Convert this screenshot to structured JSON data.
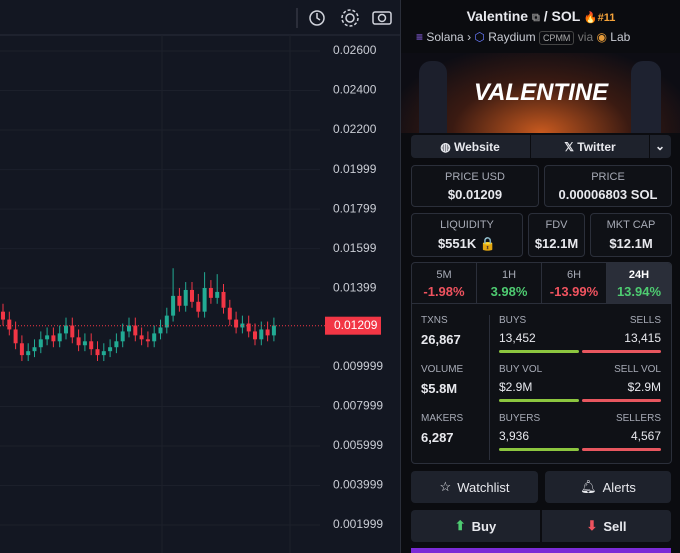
{
  "chart_data": {
    "type": "candlestick",
    "ylim": [
      0.00058,
      0.02681
    ],
    "yticks": [
      {
        "value": 0.026,
        "label": "0.02600"
      },
      {
        "value": 0.024,
        "label": "0.02400"
      },
      {
        "value": 0.022,
        "label": "0.02200"
      },
      0.01999,
      0.01799,
      0.01599,
      0.01399,
      0.009999,
      0.007999,
      0.005999,
      0.003999,
      0.001999
    ],
    "last_price": 0.01209,
    "up_color": "#22ab94",
    "down_color": "#f23645",
    "open": [
      0.0128,
      0.0124,
      0.0119,
      0.0112,
      0.0106,
      0.0108,
      0.011,
      0.0114,
      0.0116,
      0.0113,
      0.0117,
      0.0121,
      0.0115,
      0.0111,
      0.0113,
      0.0109,
      0.0106,
      0.0108,
      0.011,
      0.0113,
      0.0118,
      0.0121,
      0.0116,
      0.0114,
      0.0113,
      0.0117,
      0.012,
      0.0126,
      0.0136,
      0.0131,
      0.0139,
      0.0133,
      0.0128,
      0.014,
      0.0135,
      0.0138,
      0.013,
      0.0124,
      0.012,
      0.0122,
      0.0118,
      0.0114,
      0.0119,
      0.0116
    ],
    "high": [
      0.0132,
      0.0128,
      0.0123,
      0.0116,
      0.0112,
      0.0114,
      0.0118,
      0.012,
      0.012,
      0.0121,
      0.0125,
      0.0125,
      0.0119,
      0.0117,
      0.0117,
      0.0113,
      0.0112,
      0.0114,
      0.0117,
      0.0122,
      0.0125,
      0.0125,
      0.012,
      0.0118,
      0.0121,
      0.0124,
      0.013,
      0.015,
      0.014,
      0.0143,
      0.0143,
      0.0137,
      0.0148,
      0.0144,
      0.0147,
      0.0142,
      0.0134,
      0.0128,
      0.0126,
      0.0126,
      0.0122,
      0.0123,
      0.0123,
      0.0125
    ],
    "low": [
      0.0121,
      0.0116,
      0.0109,
      0.0103,
      0.0103,
      0.0105,
      0.0107,
      0.0111,
      0.011,
      0.011,
      0.0114,
      0.0112,
      0.0108,
      0.0108,
      0.0106,
      0.0103,
      0.0103,
      0.0105,
      0.0107,
      0.011,
      0.0115,
      0.0113,
      0.0111,
      0.011,
      0.011,
      0.0114,
      0.0117,
      0.0123,
      0.0128,
      0.0128,
      0.013,
      0.0125,
      0.0125,
      0.0132,
      0.0132,
      0.0127,
      0.0121,
      0.0117,
      0.0117,
      0.0115,
      0.0111,
      0.0111,
      0.0113,
      0.0113
    ],
    "close": [
      0.0124,
      0.0119,
      0.0112,
      0.0106,
      0.0108,
      0.011,
      0.0114,
      0.0116,
      0.0113,
      0.0117,
      0.0121,
      0.0115,
      0.0111,
      0.0113,
      0.0109,
      0.0106,
      0.0108,
      0.011,
      0.0113,
      0.0118,
      0.0121,
      0.0116,
      0.0114,
      0.0113,
      0.0117,
      0.012,
      0.0126,
      0.0136,
      0.0131,
      0.0139,
      0.0133,
      0.0128,
      0.014,
      0.0135,
      0.0138,
      0.013,
      0.0124,
      0.012,
      0.0122,
      0.0118,
      0.0114,
      0.0119,
      0.0116,
      0.0121
    ]
  },
  "panel": {
    "name": "Valentine",
    "quote": "SOL",
    "rank": "#11",
    "chain": "Solana",
    "dex": "Raydium",
    "badge": "CPMM",
    "via": "via",
    "lab": "Lab",
    "banner": "VALENTINE",
    "links": [
      "Website",
      "Twitter"
    ],
    "price_usd": {
      "label": "PRICE USD",
      "value": "$0.01209"
    },
    "price": {
      "label": "PRICE",
      "value": "0.00006803 SOL"
    },
    "liquidity": {
      "label": "LIQUIDITY",
      "value": "$551K"
    },
    "fdv": {
      "label": "FDV",
      "value": "$12.1M"
    },
    "mktcap": {
      "label": "MKT CAP",
      "value": "$12.1M"
    },
    "periods": [
      {
        "label": "5M",
        "change": "-1.98%"
      },
      {
        "label": "1H",
        "change": "3.98%"
      },
      {
        "label": "6H",
        "change": "-13.99%"
      },
      {
        "label": "24H",
        "change": "13.94%"
      }
    ],
    "stats": [
      {
        "label": "TXNS",
        "value": "26,867",
        "buy_label": "BUYS",
        "buy": "13,452",
        "sell_label": "SELLS",
        "sell": "13,415"
      },
      {
        "label": "VOLUME",
        "value": "$5.8M",
        "buy_label": "BUY VOL",
        "buy": "$2.9M",
        "sell_label": "SELL VOL",
        "sell": "$2.9M"
      },
      {
        "label": "MAKERS",
        "value": "6,287",
        "buy_label": "BUYERS",
        "buy": "3,936",
        "sell_label": "SELLERS",
        "sell": "4,567"
      }
    ],
    "watchlist": "Watchlist",
    "alerts": "Alerts",
    "buy": "Buy",
    "sell": "Sell"
  }
}
